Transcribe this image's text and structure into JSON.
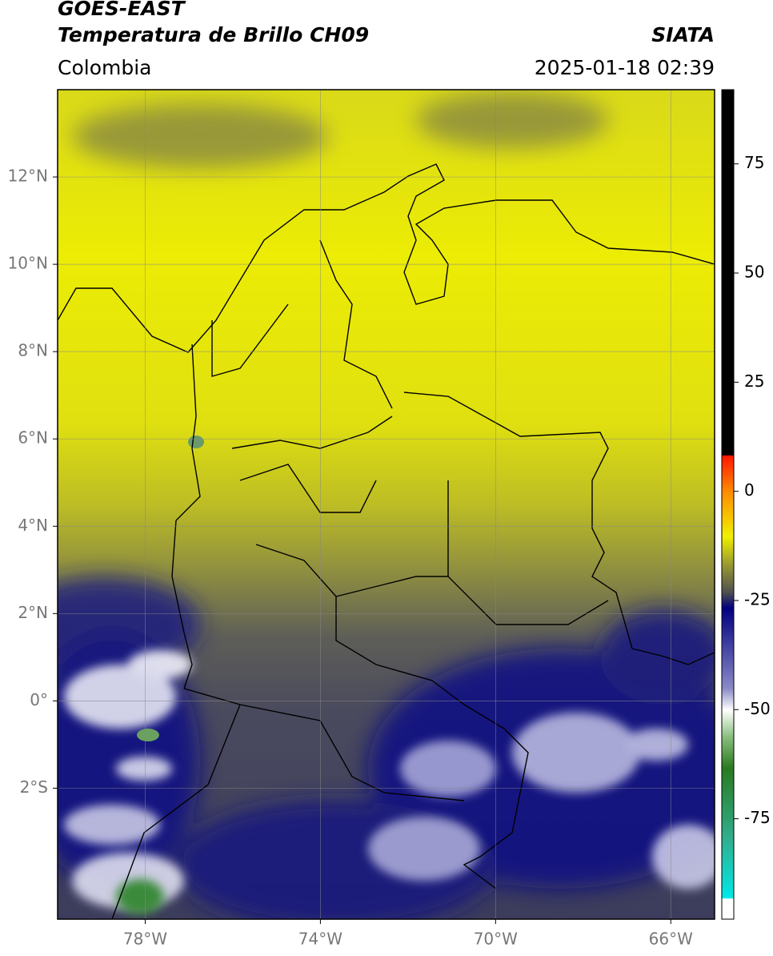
{
  "header": {
    "title": "GOES-EAST",
    "subtitle": "Temperatura de Brillo CH09",
    "region": "Colombia",
    "source": "SIATA",
    "timestamp": "2025-01-18 02:39"
  },
  "map": {
    "xlim": [
      -80,
      -65
    ],
    "ylim": [
      -5,
      14
    ],
    "xticks": [
      {
        "value": -78,
        "label": "78°W"
      },
      {
        "value": -74,
        "label": "74°W"
      },
      {
        "value": -70,
        "label": "70°W"
      },
      {
        "value": -66,
        "label": "66°W"
      }
    ],
    "yticks": [
      {
        "value": 12,
        "label": "12°N"
      },
      {
        "value": 10,
        "label": "10°N"
      },
      {
        "value": 8,
        "label": "8°N"
      },
      {
        "value": 6,
        "label": "6°N"
      },
      {
        "value": 4,
        "label": "4°N"
      },
      {
        "value": 2,
        "label": "2°N"
      },
      {
        "value": 0,
        "label": "0°"
      },
      {
        "value": -2,
        "label": "2°S"
      }
    ]
  },
  "colorbar": {
    "lim": [
      -98,
      92
    ],
    "ticks": [
      75,
      50,
      25,
      0,
      -25,
      -50,
      -75
    ]
  }
}
